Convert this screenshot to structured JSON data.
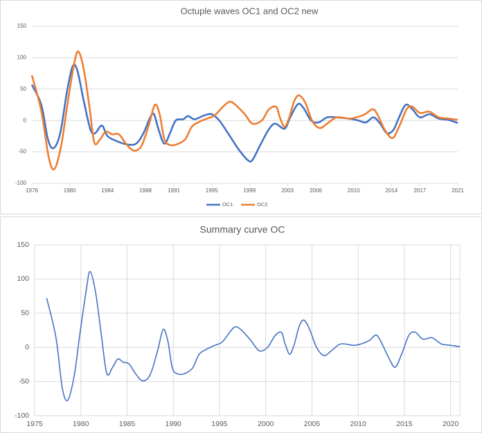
{
  "chart_data": [
    {
      "type": "line",
      "title": "Octuple waves OC1 and OC2 new",
      "xlim": [
        1976,
        2021
      ],
      "xticks": [
        1976,
        1980,
        1984,
        1988,
        1991,
        1995,
        1999,
        2003,
        2006,
        2010,
        2014,
        2017,
        2021
      ],
      "ylim": [
        -100,
        150
      ],
      "yticks": [
        -100,
        -50,
        0,
        50,
        100,
        150
      ],
      "grid": "horizontal",
      "legend": "bottom",
      "series": [
        {
          "name": "OC1",
          "color": "#4472c4",
          "x": [
            1976,
            1977,
            1977.7,
            1978.3,
            1979,
            1979.7,
            1980.3,
            1980.8,
            1981.5,
            1982.2,
            1982.7,
            1983.4,
            1984,
            1985,
            1986,
            1987,
            1987.8,
            1988.5,
            1988.9,
            1989.4,
            1990,
            1990.6,
            1991.2,
            1992,
            1992.5,
            1993.2,
            1994.2,
            1995,
            1995.8,
            1996.8,
            1997.8,
            1998.8,
            1999.3,
            2000.1,
            2001,
            2001.7,
            2002.7,
            2003.3,
            2004.1,
            2004.7,
            2005.5,
            2006.3,
            2007.2,
            2008.2,
            2009.5,
            2010.5,
            2011.3,
            2012.1,
            2012.8,
            2013.5,
            2014.2,
            2014.8,
            2015.5,
            2016.2,
            2017,
            2018,
            2019,
            2020,
            2021
          ],
          "values": [
            57,
            25,
            -30,
            -44,
            -20,
            45,
            86,
            80,
            30,
            -15,
            -20,
            -8,
            -25,
            -33,
            -38,
            -37,
            -20,
            5,
            10,
            -15,
            -37,
            -20,
            0,
            2,
            7,
            2,
            8,
            10,
            0,
            -22,
            -45,
            -63,
            -63,
            -40,
            -15,
            -5,
            -13,
            5,
            26,
            20,
            0,
            -3,
            5,
            5,
            3,
            0,
            -3,
            5,
            -5,
            -20,
            -15,
            5,
            25,
            18,
            5,
            10,
            3,
            1,
            -4
          ]
        },
        {
          "name": "OC2",
          "color": "#ed7d31",
          "x": [
            1976,
            1977,
            1977.8,
            1978.4,
            1979.1,
            1979.7,
            1980.4,
            1980.9,
            1981.5,
            1982.1,
            1982.6,
            1983.2,
            1983.8,
            1984.5,
            1985.2,
            1986,
            1986.8,
            1987.6,
            1988.4,
            1989,
            1989.5,
            1990,
            1990.6,
            1991.3,
            1992.2,
            1992.9,
            1993.7,
            1994.5,
            1995.3,
            1996.2,
            1996.9,
            1997.5,
            1998.5,
            1999.3,
            2000.3,
            2001,
            2001.8,
            2002.2,
            2002.7,
            2003.2,
            2003.7,
            2004.2,
            2004.9,
            2005.6,
            2006.4,
            2007.2,
            2008.2,
            2009.5,
            2010.3,
            2011.2,
            2012,
            2012.5,
            2013.3,
            2014.1,
            2014.8,
            2015.6,
            2016.2,
            2017,
            2018,
            2019,
            2020,
            2021
          ],
          "values": [
            72,
            15,
            -60,
            -77,
            -40,
            20,
            85,
            110,
            80,
            20,
            -35,
            -30,
            -18,
            -22,
            -22,
            -38,
            -48,
            -40,
            -5,
            25,
            10,
            -30,
            -39,
            -38,
            -30,
            -10,
            -2,
            3,
            8,
            22,
            30,
            25,
            10,
            -5,
            0,
            17,
            22,
            5,
            -10,
            5,
            30,
            40,
            28,
            0,
            -12,
            -5,
            5,
            3,
            5,
            10,
            18,
            10,
            -15,
            -28,
            -10,
            18,
            22,
            12,
            14,
            5,
            3,
            1
          ]
        }
      ]
    },
    {
      "type": "line",
      "title": "Summary curve OC",
      "xlim": [
        1975,
        2021
      ],
      "xticks": [
        1975,
        1980,
        1985,
        1990,
        1995,
        2000,
        2005,
        2010,
        2015,
        2020
      ],
      "ylim": [
        -100,
        150
      ],
      "yticks": [
        -100,
        -50,
        0,
        50,
        100,
        150
      ],
      "grid": "both",
      "series": [
        {
          "color": "#4472c4",
          "x": [
            1976.3,
            1977.3,
            1978,
            1978.6,
            1979.3,
            1979.9,
            1980.6,
            1981,
            1981.6,
            1982.2,
            1982.8,
            1983.4,
            1984,
            1984.6,
            1985.2,
            1986,
            1986.7,
            1987.5,
            1988.3,
            1988.9,
            1989.4,
            1989.9,
            1990.5,
            1991.3,
            1992.1,
            1992.8,
            1993.7,
            1994.5,
            1995.3,
            1996.1,
            1996.7,
            1997.4,
            1998.4,
            1999.3,
            2000.2,
            2001,
            2001.7,
            2002.1,
            2002.6,
            2003.1,
            2003.6,
            2004.1,
            2004.7,
            2005.5,
            2006.3,
            2007.1,
            2008.1,
            2009.5,
            2010.3,
            2011.2,
            2011.9,
            2012.4,
            2013.3,
            2014,
            2014.7,
            2015.5,
            2016.2,
            2017,
            2018,
            2019,
            2020,
            2021
          ],
          "values": [
            72,
            15,
            -60,
            -77,
            -40,
            20,
            85,
            111,
            80,
            20,
            -38,
            -30,
            -17,
            -22,
            -24,
            -40,
            -49,
            -40,
            -5,
            26,
            10,
            -30,
            -39,
            -38,
            -30,
            -10,
            -2,
            3,
            8,
            22,
            30,
            25,
            10,
            -5,
            0,
            17,
            22,
            5,
            -10,
            5,
            30,
            40,
            28,
            0,
            -12,
            -5,
            5,
            3,
            5,
            10,
            18,
            10,
            -15,
            -29,
            -10,
            18,
            22,
            12,
            14,
            5,
            3,
            1
          ]
        }
      ]
    }
  ]
}
